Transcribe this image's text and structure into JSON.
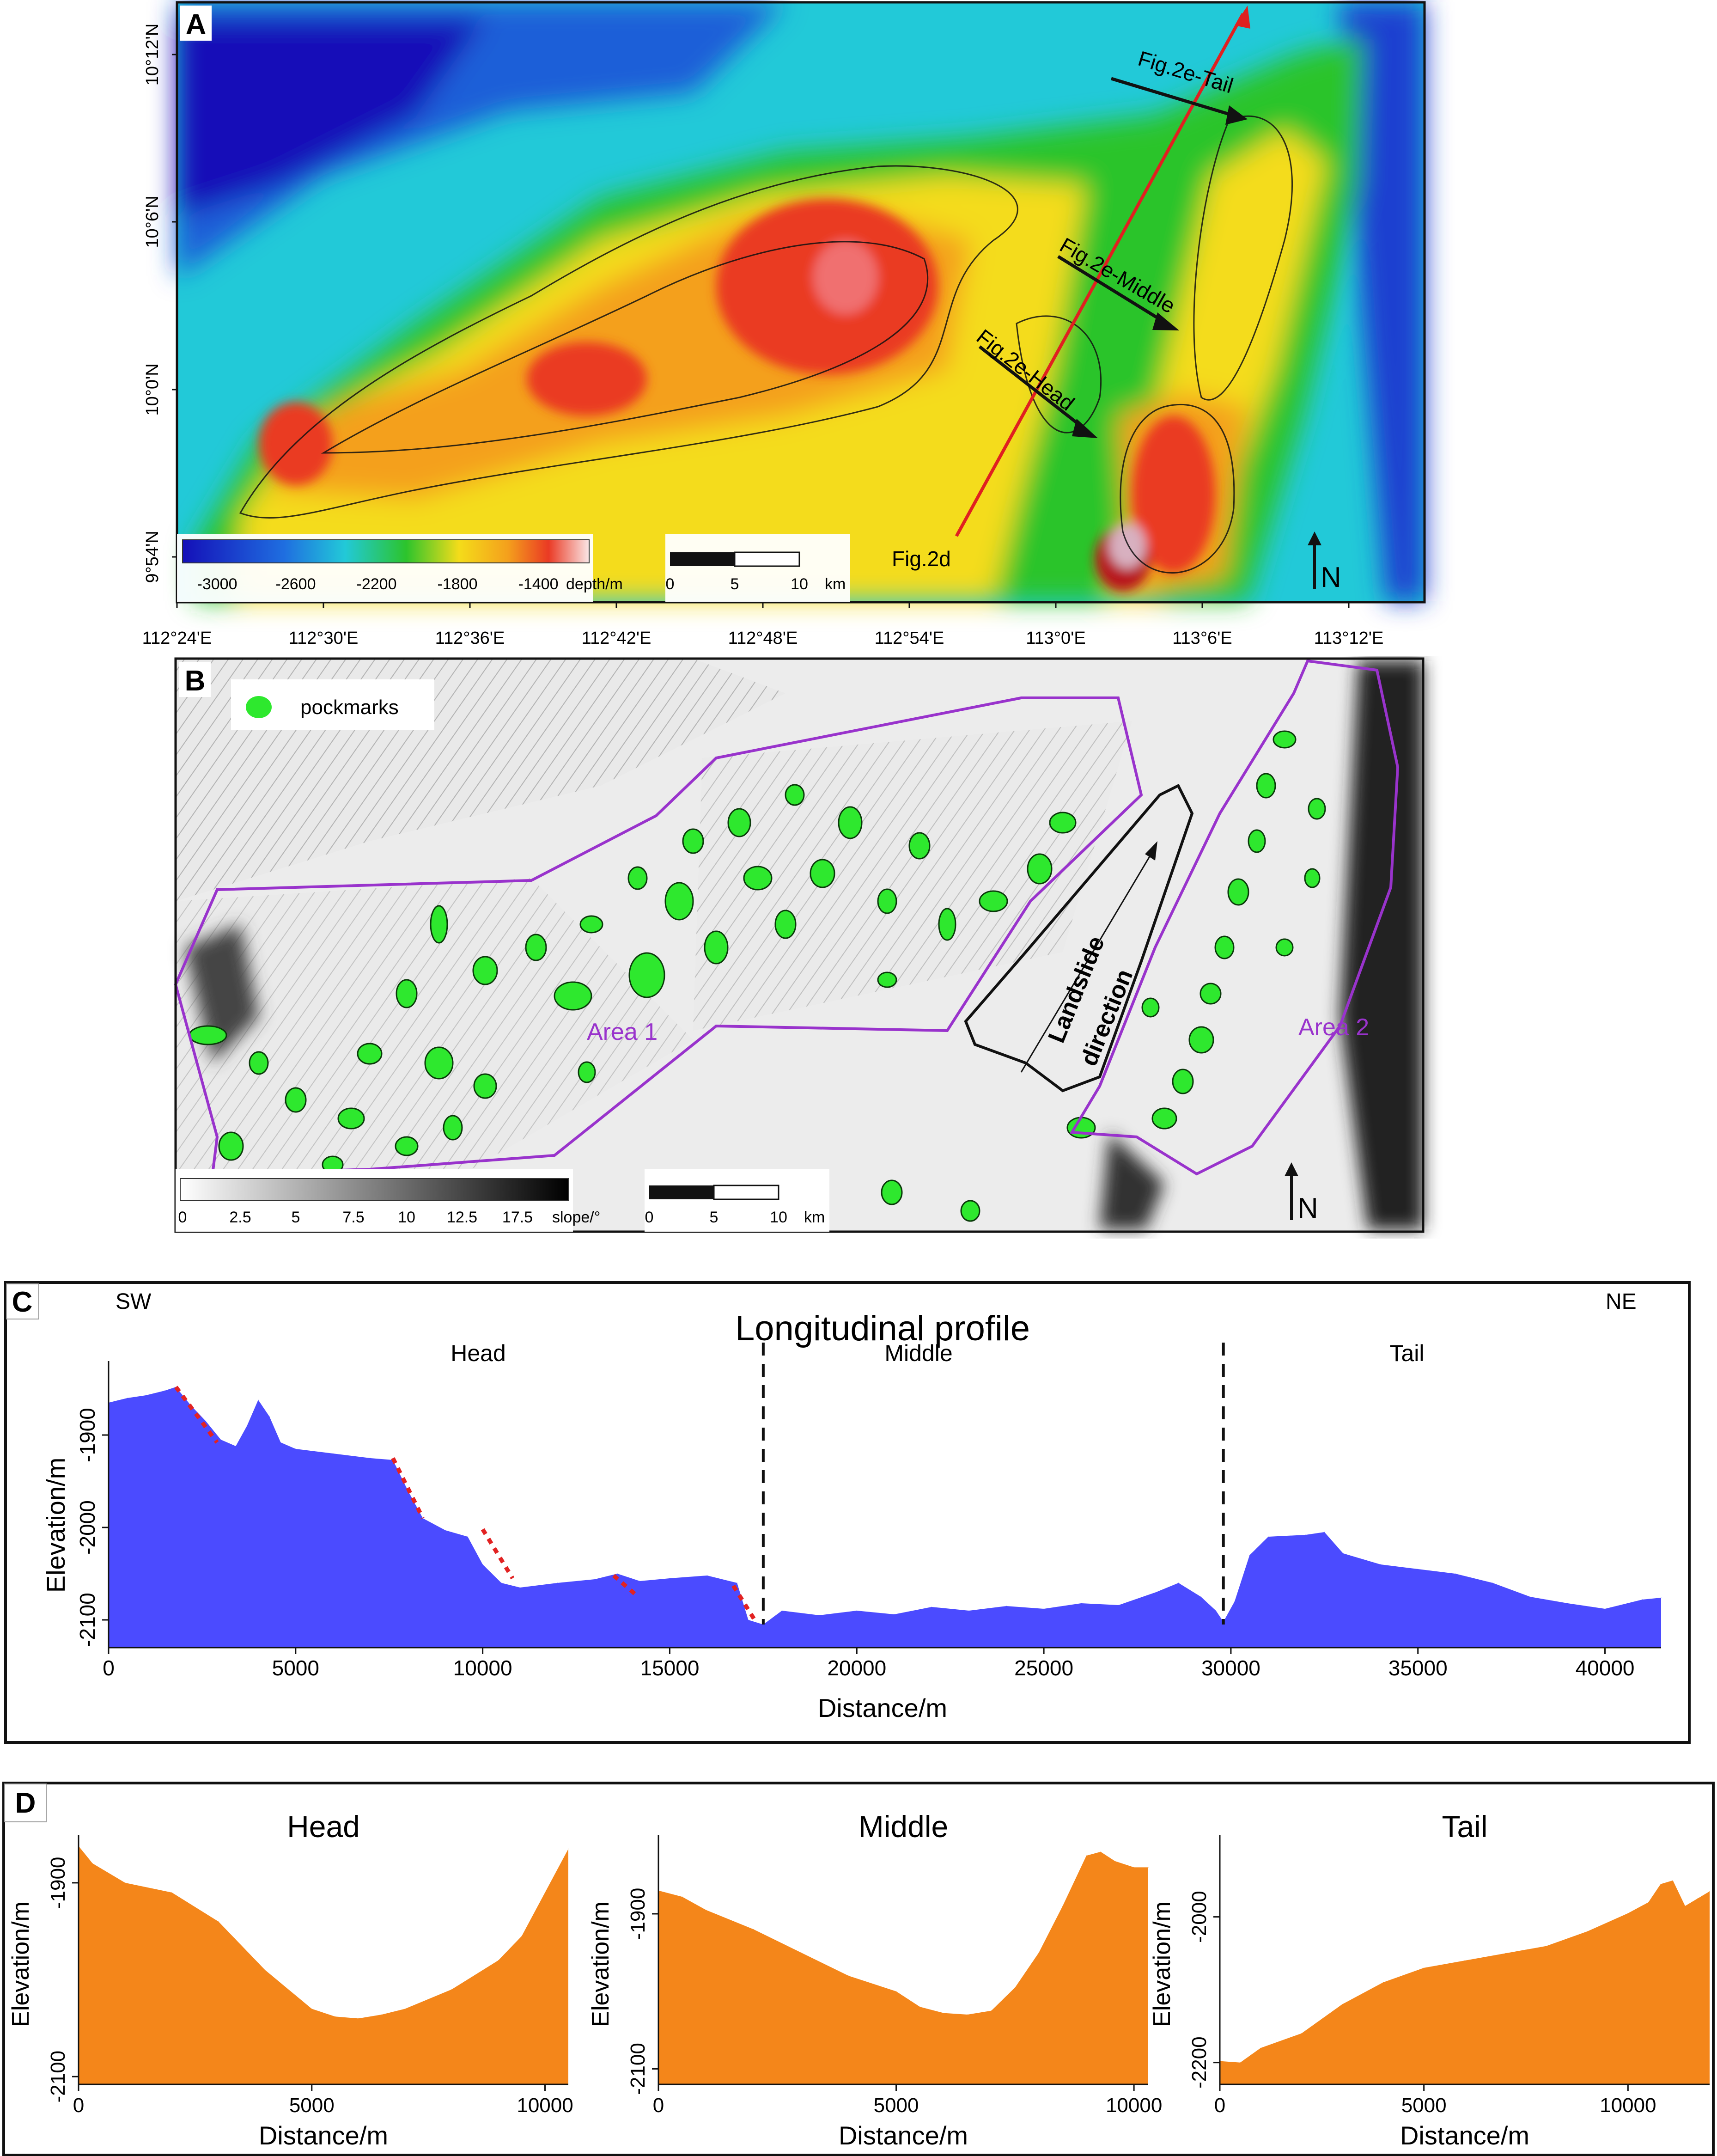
{
  "panelA": {
    "letter": "A",
    "lat_ticks": [
      "10°12'N",
      "10°6'N",
      "10°0'N",
      "9°54'N"
    ],
    "lon_ticks": [
      "112°24'E",
      "112°30'E",
      "112°36'E",
      "112°42'E",
      "112°48'E",
      "112°54'E",
      "113°0'E",
      "113°6'E",
      "113°12'E"
    ],
    "profile_labels": [
      "Fig.2e-Tail",
      "Fig.2e-Middle",
      "Fig.2e-Head",
      "Fig.2d"
    ],
    "depth_ticks": [
      "-3000",
      "-2600",
      "-2200",
      "-1800",
      "-1400"
    ],
    "depth_unit": "depth/m",
    "scale_ticks": [
      "0",
      "5",
      "10"
    ],
    "scale_unit": "km",
    "north": "N",
    "colors": {
      "deep": "#1410b8",
      "mid": "#22c9d8",
      "green": "#2cc42c",
      "yellow": "#f4dc1a",
      "orange": "#f4a01c",
      "red": "#ea3a24",
      "pink": "#f4d2d2"
    }
  },
  "panelB": {
    "letter": "B",
    "legend_label": "pockmarks",
    "area1": "Area 1",
    "area2": "Area 2",
    "landslide": [
      "Landslide",
      "direction"
    ],
    "slope_ticks": [
      "0",
      "2.5",
      "5",
      "7.5",
      "10",
      "12.5",
      "17.5"
    ],
    "slope_unit": "slope/°",
    "scale_ticks": [
      "0",
      "5",
      "10"
    ],
    "scale_unit": "km",
    "north": "N",
    "colors": {
      "pockmark": "#2ee82e",
      "area": "#9933cc"
    }
  },
  "panelC": {
    "letter": "C",
    "sw": "SW",
    "ne": "NE",
    "title": "Longitudinal profile",
    "sections": [
      "Head",
      "Middle",
      "Tail"
    ],
    "annotation": "headwall",
    "chart_data": {
      "type": "area",
      "title": "Longitudinal profile",
      "xlabel": "Distance/m",
      "ylabel": "Elevation/m",
      "xlim": [
        0,
        41500
      ],
      "ylim": [
        -2130,
        -1830
      ],
      "xticks": [
        0,
        5000,
        10000,
        15000,
        20000,
        25000,
        30000,
        35000,
        40000
      ],
      "yticks": [
        -2100,
        -2000,
        -1900
      ],
      "x": [
        0,
        500,
        1000,
        1500,
        1800,
        2200,
        2600,
        3000,
        3400,
        3700,
        4000,
        4300,
        4600,
        5000,
        6000,
        7000,
        7600,
        8000,
        8400,
        9000,
        9600,
        10000,
        10500,
        11000,
        12000,
        13000,
        13600,
        14200,
        15000,
        16000,
        16800,
        17100,
        17500,
        18000,
        19000,
        20000,
        21000,
        22000,
        23000,
        24000,
        25000,
        26000,
        27000,
        28000,
        28600,
        29200,
        29600,
        29800,
        30100,
        30500,
        31000,
        32000,
        32500,
        33000,
        34000,
        35000,
        36000,
        37000,
        38000,
        39000,
        40000,
        41000,
        41500
      ],
      "y": [
        -1865,
        -1860,
        -1857,
        -1852,
        -1848,
        -1868,
        -1885,
        -1905,
        -1912,
        -1890,
        -1862,
        -1880,
        -1908,
        -1915,
        -1920,
        -1925,
        -1927,
        -1960,
        -1990,
        -2003,
        -2010,
        -2040,
        -2060,
        -2065,
        -2060,
        -2056,
        -2050,
        -2058,
        -2055,
        -2052,
        -2060,
        -2100,
        -2105,
        -2090,
        -2095,
        -2090,
        -2094,
        -2086,
        -2090,
        -2085,
        -2088,
        -2082,
        -2084,
        -2070,
        -2060,
        -2075,
        -2090,
        -2102,
        -2080,
        -2030,
        -2010,
        -2008,
        -2005,
        -2028,
        -2040,
        -2045,
        -2050,
        -2060,
        -2075,
        -2082,
        -2088,
        -2078,
        -2076
      ],
      "dividers_x": [
        17500,
        29800
      ],
      "headwall_segments": [
        [
          [
            1800,
            -1848
          ],
          [
            2900,
            -1908
          ]
        ],
        [
          [
            7600,
            -1925
          ],
          [
            8400,
            -1990
          ]
        ],
        [
          [
            10000,
            -2002
          ],
          [
            10800,
            -2055
          ]
        ],
        [
          [
            13500,
            -2052
          ],
          [
            14100,
            -2073
          ]
        ],
        [
          [
            16700,
            -2063
          ],
          [
            17300,
            -2102
          ]
        ]
      ],
      "colors": {
        "fill": "#4b4bff",
        "headwall": "#e22222"
      }
    }
  },
  "panelD": {
    "letter": "D",
    "chart_data": [
      {
        "type": "area",
        "title": "Head",
        "xlabel": "Distance/m",
        "ylabel": "Elevation/m",
        "xlim": [
          0,
          10500
        ],
        "ylim": [
          -2108,
          -1860
        ],
        "xticks": [
          0,
          5000,
          10000
        ],
        "yticks": [
          -2100,
          -1900
        ],
        "x": [
          0,
          300,
          1000,
          2000,
          3000,
          4000,
          5000,
          5500,
          6000,
          6500,
          7000,
          8000,
          9000,
          9500,
          10000,
          10500
        ],
        "y": [
          -1862,
          -1880,
          -1900,
          -1910,
          -1940,
          -1990,
          -2030,
          -2038,
          -2040,
          -2036,
          -2030,
          -2010,
          -1980,
          -1955,
          -1910,
          -1865
        ]
      },
      {
        "type": "area",
        "title": "Middle",
        "xlabel": "Distance/m",
        "ylabel": "Elevation/m",
        "xlim": [
          0,
          10300
        ],
        "ylim": [
          -2120,
          -1810
        ],
        "xticks": [
          0,
          5000,
          10000
        ],
        "yticks": [
          -2100,
          -1900
        ],
        "x": [
          0,
          500,
          1000,
          2000,
          3000,
          4000,
          5000,
          5500,
          6000,
          6500,
          7000,
          7500,
          8000,
          8500,
          9000,
          9300,
          9600,
          10000,
          10300
        ],
        "y": [
          -1870,
          -1878,
          -1895,
          -1920,
          -1950,
          -1980,
          -2000,
          -2020,
          -2028,
          -2030,
          -2025,
          -1995,
          -1950,
          -1890,
          -1825,
          -1820,
          -1832,
          -1840,
          -1840
        ],
        "colors": {
          "fill": "#f4861a"
        }
      },
      {
        "type": "area",
        "title": "Tail",
        "xlabel": "Distance/m",
        "ylabel": "Elevation/m",
        "xlim": [
          0,
          12000
        ],
        "ylim": [
          -2230,
          -1900
        ],
        "xticks": [
          0,
          5000,
          10000
        ],
        "yticks": [
          -2200,
          -2000
        ],
        "x": [
          0,
          500,
          1000,
          2000,
          3000,
          4000,
          5000,
          6000,
          7000,
          8000,
          9000,
          10000,
          10500,
          10800,
          11100,
          11400,
          11700,
          12000
        ],
        "y": [
          -2198,
          -2200,
          -2180,
          -2160,
          -2120,
          -2090,
          -2070,
          -2060,
          -2050,
          -2040,
          -2020,
          -1995,
          -1980,
          -1955,
          -1950,
          -1985,
          -1975,
          -1965
        ]
      }
    ]
  }
}
